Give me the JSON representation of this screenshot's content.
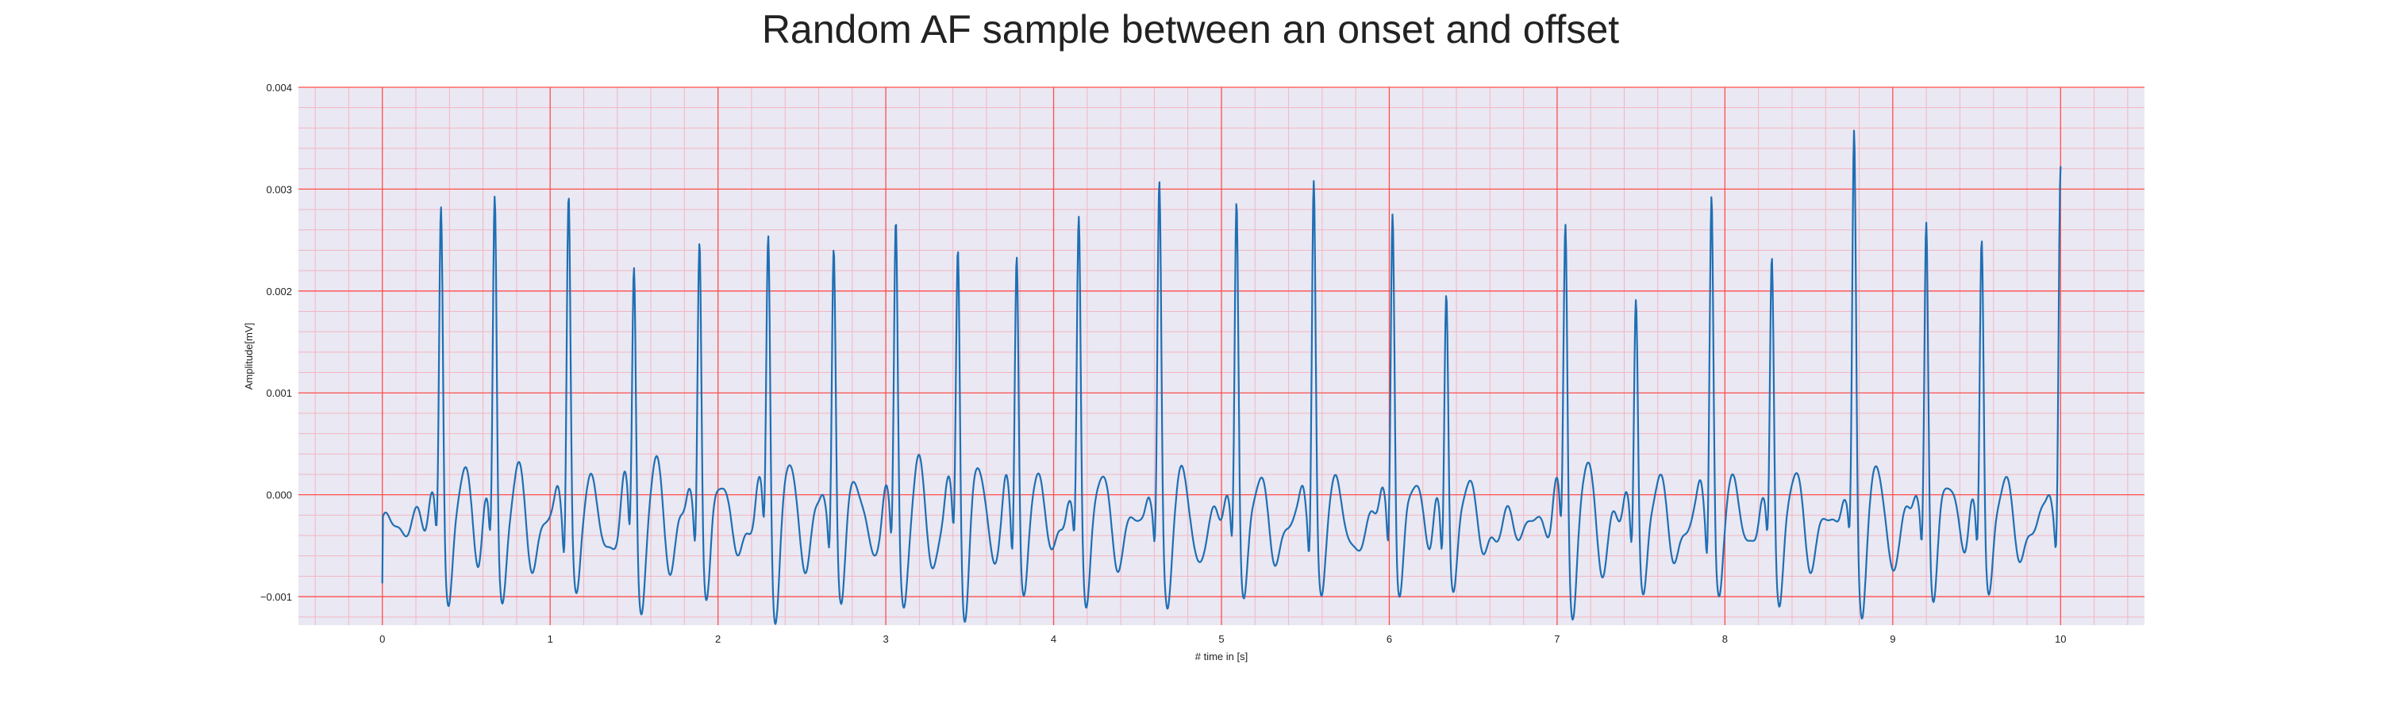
{
  "chart_data": {
    "type": "line",
    "title": "Random AF sample between an onset and offset",
    "xlabel": "# time in [s]",
    "ylabel": "Amplitude[mV]",
    "xlim": [
      -0.5,
      10.5
    ],
    "ylim": [
      -0.00128,
      0.004
    ],
    "xticks": [
      0,
      1,
      2,
      3,
      4,
      5,
      6,
      7,
      8,
      9,
      10
    ],
    "xtick_labels": [
      "0",
      "1",
      "2",
      "3",
      "4",
      "5",
      "6",
      "7",
      "8",
      "9",
      "10"
    ],
    "yticks": [
      -0.001,
      0.0,
      0.001,
      0.002,
      0.003,
      0.004
    ],
    "ytick_labels": [
      "−0.001",
      "0.000",
      "0.001",
      "0.002",
      "0.003",
      "0.004"
    ],
    "grid": true,
    "minor_grid": true,
    "colors": {
      "line": "#1f6fb4",
      "major_grid": "#ff4d4d",
      "minor_grid": "#f2b6c2",
      "plot_background": "#eae8f2"
    },
    "r_peaks": [
      {
        "t": 0.35,
        "v": 0.00315
      },
      {
        "t": 0.67,
        "v": 0.00328
      },
      {
        "t": 1.11,
        "v": 0.00336
      },
      {
        "t": 1.5,
        "v": 0.00266
      },
      {
        "t": 1.89,
        "v": 0.00296
      },
      {
        "t": 2.3,
        "v": 0.00294
      },
      {
        "t": 2.69,
        "v": 0.00279
      },
      {
        "t": 3.06,
        "v": 0.00302
      },
      {
        "t": 3.43,
        "v": 0.00287
      },
      {
        "t": 3.78,
        "v": 0.0029
      },
      {
        "t": 4.15,
        "v": 0.00302
      },
      {
        "t": 4.63,
        "v": 0.00333
      },
      {
        "t": 5.09,
        "v": 0.00326
      },
      {
        "t": 5.55,
        "v": 0.00349
      },
      {
        "t": 6.02,
        "v": 0.00325
      },
      {
        "t": 6.34,
        "v": 0.00248
      },
      {
        "t": 7.05,
        "v": 0.00303
      },
      {
        "t": 7.47,
        "v": 0.00233
      },
      {
        "t": 7.92,
        "v": 0.00339
      },
      {
        "t": 8.28,
        "v": 0.00264
      },
      {
        "t": 8.77,
        "v": 0.00379
      },
      {
        "t": 9.2,
        "v": 0.00308
      },
      {
        "t": 9.53,
        "v": 0.00293
      },
      {
        "t": 10.0,
        "v": 0.00356
      }
    ],
    "start": {
      "t": 0.0,
      "v": -0.00087
    }
  }
}
